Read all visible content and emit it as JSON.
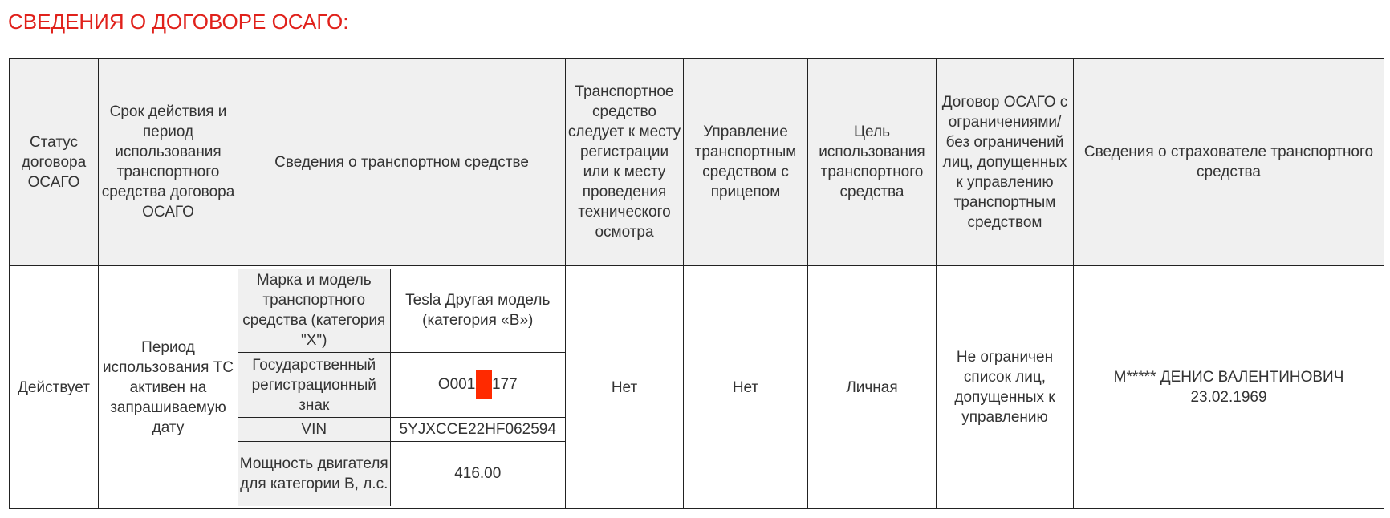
{
  "title": "СВЕДЕНИЯ О ДОГОВОРЕ ОСАГО:",
  "headers": [
    "Статус договора ОСАГО",
    "Срок действия и период использования транспортного средства договора ОСАГО",
    "Сведения о транспортном средстве",
    "Транспортное средство следует к месту регистрации или к месту проведения технического осмотра",
    "Управление транспортным средством с прицепом",
    "Цель использования транспортного средства",
    "Договор ОСАГО с ограничениями/ без ограничений лиц, допущенных к управлению транспортным средством",
    "Сведения о страхователе транспортного средства"
  ],
  "row": {
    "status": "Действует",
    "period": "Период использования ТС активен на запрашиваемую дату",
    "vehicle": [
      {
        "label": "Марка и модель транспортного средства (категория \"X\")",
        "value": "Tesla Другая модель (категория «B»)"
      },
      {
        "label": "Государственный регистрационный знак",
        "value": "O001X",
        "value_suffix": "177"
      },
      {
        "label": "VIN",
        "value": "5YJXCCE22HF062594"
      },
      {
        "label": "Мощность двигателя для категории B, л.с.",
        "value": "416.00"
      }
    ],
    "to_registration": "Нет",
    "trailer": "Нет",
    "purpose": "Личная",
    "restrictions": "Не ограничен список лиц, допущенных к управлению",
    "insurer_name": "М***** ДЕНИС ВАЛЕНТИНОВИЧ",
    "insurer_dob": "23.02.1969"
  },
  "colors": {
    "title": "#e0211b",
    "header_bg": "#f0f0f0",
    "redaction": "#ff2a00"
  }
}
